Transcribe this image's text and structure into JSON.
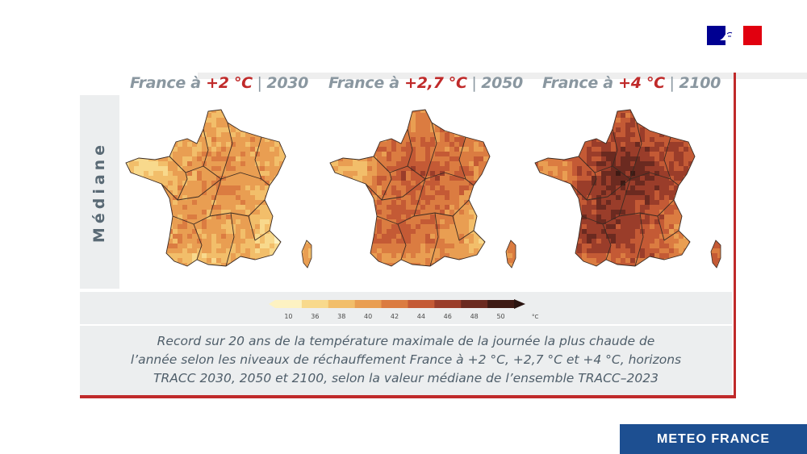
{
  "branding": {
    "institution_logo_icon": "marianne-flag-icon",
    "footer_label": "METEO FRANCE"
  },
  "figure": {
    "row_label": "Médiane",
    "panels": [
      {
        "title_prefix": "France à ",
        "title_warming": "+2 °C",
        "title_sep": " | ",
        "title_year": "2030",
        "intensity": 0.35
      },
      {
        "title_prefix": "France à ",
        "title_warming": "+2,7 °C",
        "title_sep": " | ",
        "title_year": "2050",
        "intensity": 0.6
      },
      {
        "title_prefix": "France à ",
        "title_warming": "+4 °C",
        "title_sep": " | ",
        "title_year": "2100",
        "intensity": 0.9
      }
    ],
    "colorbar": {
      "ticks": [
        "10",
        "36",
        "38",
        "40",
        "42",
        "44",
        "46",
        "48",
        "50"
      ],
      "unit": "°C",
      "colors": [
        "#fdf2c2",
        "#f8d98c",
        "#f2be6a",
        "#e99e52",
        "#db7c41",
        "#c45a35",
        "#9a3d2a",
        "#6b2a20",
        "#3e1a14"
      ]
    },
    "caption_lines": [
      "Record sur 20 ans de la température maximale de la journée la plus chaude de",
      "l’année selon les niveaux de réchauffement France à +2 °C, +2,7 °C et +4 °C, horizons",
      "TRACC 2030, 2050 et 2100, selon la valeur médiane de l’ensemble TRACC–2023"
    ]
  }
}
